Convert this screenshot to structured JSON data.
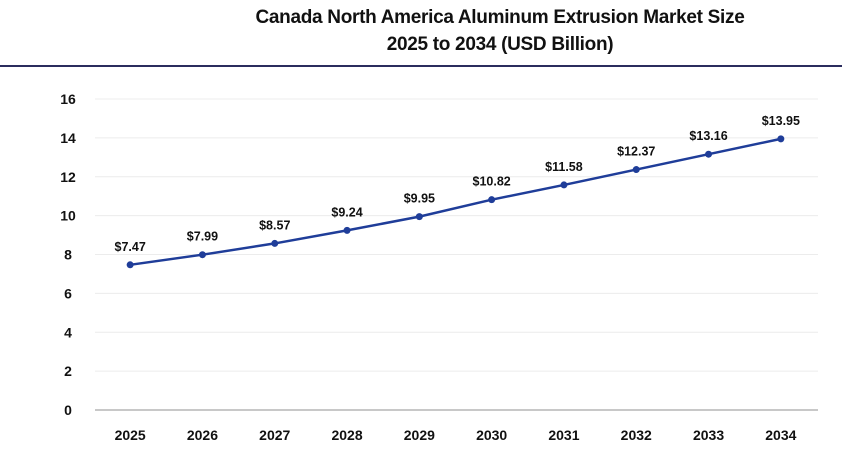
{
  "chart_data": {
    "type": "line",
    "title": "Canada North America Aluminum Extrusion Market Size",
    "subtitle": "2025 to 2034 (USD Billion)",
    "xlabel": "",
    "ylabel": "",
    "categories": [
      "2025",
      "2026",
      "2027",
      "2028",
      "2029",
      "2030",
      "2031",
      "2032",
      "2033",
      "2034"
    ],
    "values": [
      7.47,
      7.99,
      8.57,
      9.24,
      9.95,
      10.82,
      11.58,
      12.37,
      13.16,
      13.95
    ],
    "data_labels": [
      "$7.47",
      "$7.99",
      "$8.57",
      "$9.24",
      "$9.95",
      "$10.82",
      "$11.58",
      "$12.37",
      "$13.16",
      "$13.95"
    ],
    "ylim": [
      0,
      16
    ],
    "yticks": [
      "0",
      "2",
      "4",
      "6",
      "8",
      "10",
      "12",
      "14",
      "16"
    ],
    "grid": true,
    "legend": "none",
    "line_color": "#1f3d99"
  }
}
